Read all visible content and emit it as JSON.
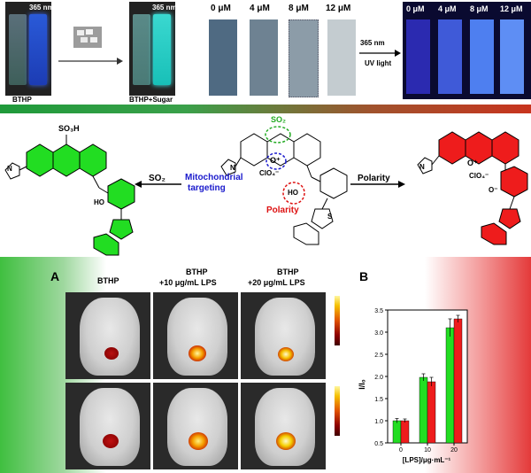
{
  "top": {
    "vial_wavelength_left": "365 nm",
    "vial_wavelength_right": "365 nm",
    "vial_label_left": "BTHP",
    "vial_label_right": "BTHP+Sugar",
    "strip_concs": [
      "0 μM",
      "4 μM",
      "8 μM",
      "12 μM"
    ],
    "strip_concs_uv": [
      "0 μM",
      "4 μM",
      "8 μM",
      "12 μM"
    ],
    "arrow_top": "365 nm",
    "arrow_bottom": "UV light"
  },
  "middle": {
    "so3h": "SO₃H",
    "so2_arrow": "SO₂",
    "mito": "Mitochondrial",
    "targeting": "targeting",
    "so2_site": "SO₂",
    "clo4_center": "ClO₄⁻",
    "clo4_right": "ClO₄⁻",
    "oplus": "O⁺",
    "ho_center": "HO",
    "polarity_site": "Polarity",
    "polarity_arrow": "Polarity",
    "ho_left": "HO",
    "n": "N",
    "s": "S",
    "o_minus": "O⁻"
  },
  "panelA": {
    "letter": "A",
    "col1": "BTHP",
    "col2_l1": "BTHP",
    "col2_l2": "+10 μg/mL LPS",
    "col3_l1": "BTHP",
    "col3_l2": "+20 μg/mL LPS"
  },
  "panelB": {
    "letter": "B"
  },
  "chart_data": {
    "type": "bar",
    "categories": [
      "0",
      "10",
      "20"
    ],
    "xlabel": "[LPS]/μg·mL⁻¹",
    "ylabel": "I/I₀",
    "ylim": [
      0.5,
      3.5
    ],
    "yticks": [
      "0.5",
      "1.0",
      "1.5",
      "2.0",
      "2.5",
      "3.0",
      "3.5"
    ],
    "series": [
      {
        "color": "#22dd22",
        "values": [
          1.0,
          1.98,
          3.1
        ],
        "errors": [
          0.05,
          0.08,
          0.2
        ]
      },
      {
        "color": "#ee1c1c",
        "values": [
          1.0,
          1.88,
          3.3
        ],
        "errors": [
          0.04,
          0.1,
          0.08
        ]
      }
    ]
  }
}
